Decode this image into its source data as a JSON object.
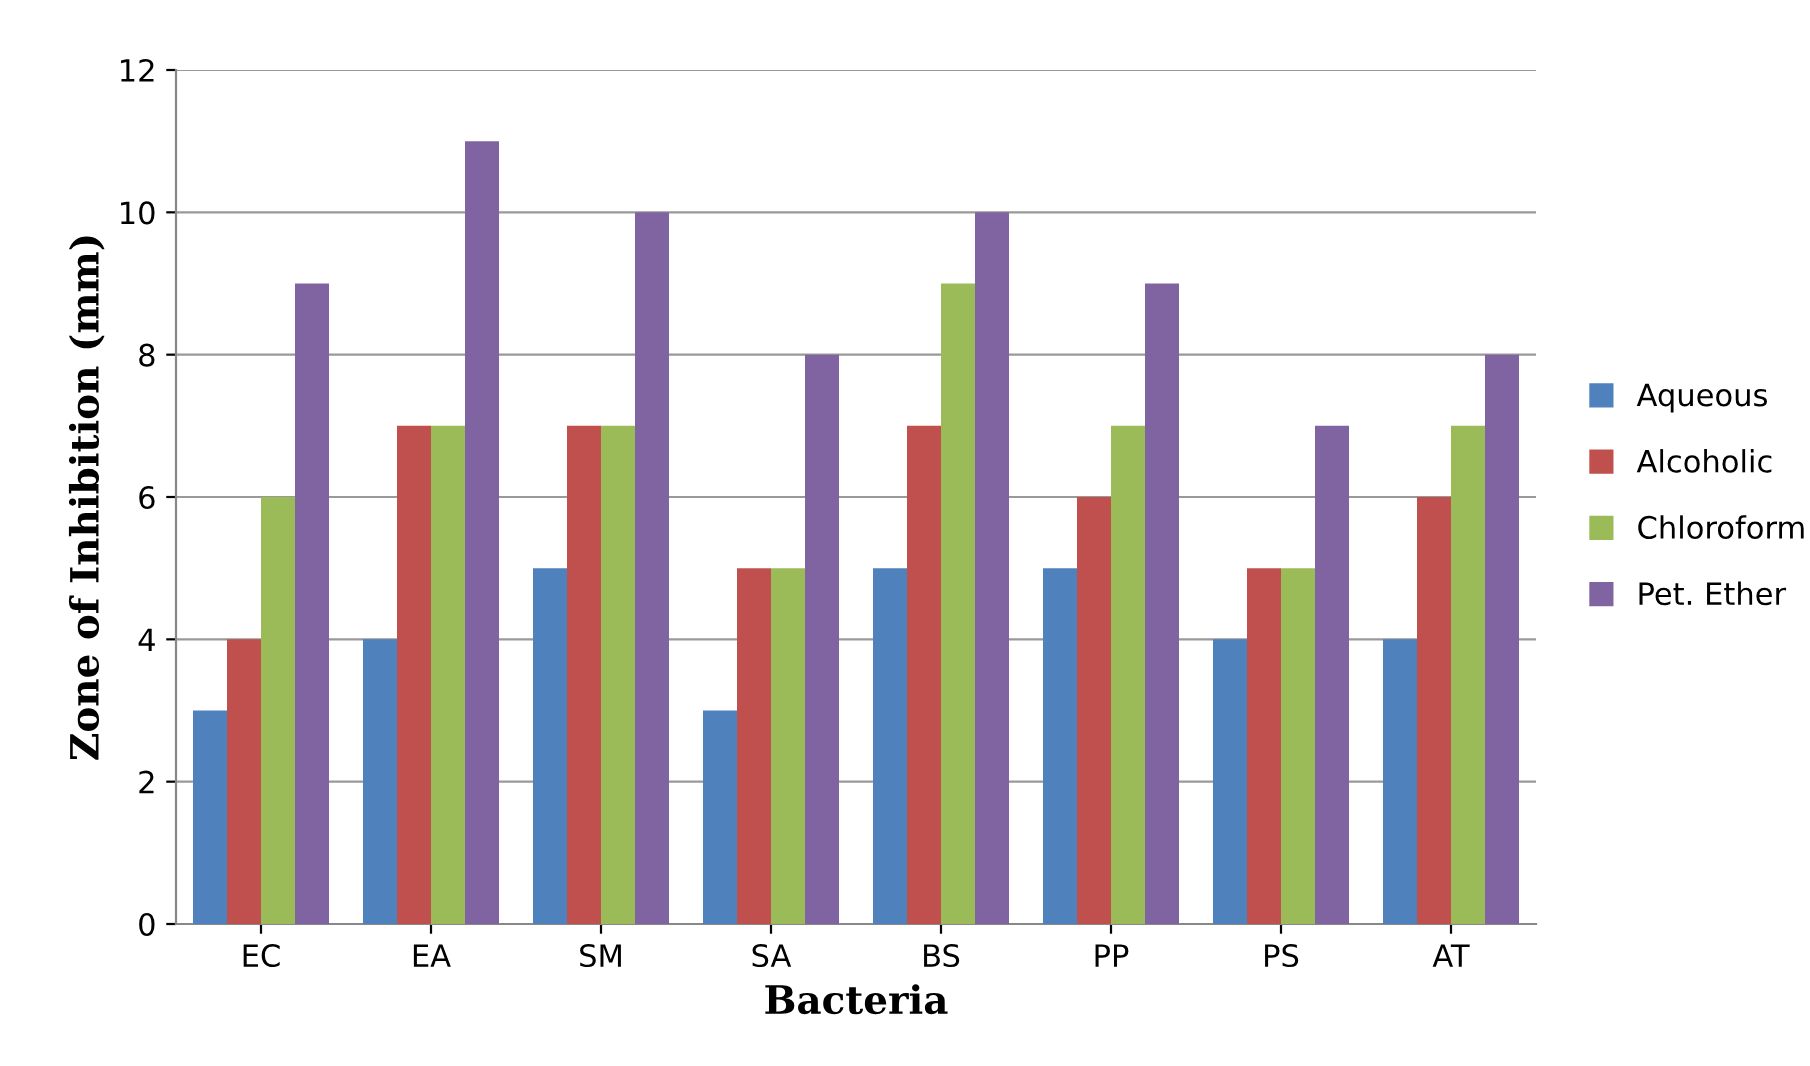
{
  "chart_data": {
    "type": "bar",
    "xlabel": "Bacteria",
    "ylabel": "Zone of Inhibition (mm)",
    "categories": [
      "EC",
      "EA",
      "SM",
      "SA",
      "BS",
      "PP",
      "PS",
      "AT"
    ],
    "series": [
      {
        "name": "Aqueous",
        "color": "#4f81bd",
        "values": [
          3,
          4,
          5,
          3,
          5,
          5,
          4,
          4
        ]
      },
      {
        "name": "Alcoholic",
        "color": "#c0504d",
        "values": [
          4,
          7,
          7,
          5,
          7,
          6,
          5,
          6
        ]
      },
      {
        "name": "Chloroform",
        "color": "#9bbb59",
        "values": [
          6,
          7,
          7,
          5,
          9,
          7,
          5,
          7
        ]
      },
      {
        "name": "Pet. Ether",
        "color": "#8064a2",
        "values": [
          9,
          11,
          10,
          8,
          10,
          9,
          7,
          8
        ]
      }
    ],
    "ylim": [
      0,
      12
    ],
    "yticks": [
      0,
      2,
      4,
      6,
      8,
      10,
      12
    ],
    "grid": "y",
    "legend": "right"
  }
}
